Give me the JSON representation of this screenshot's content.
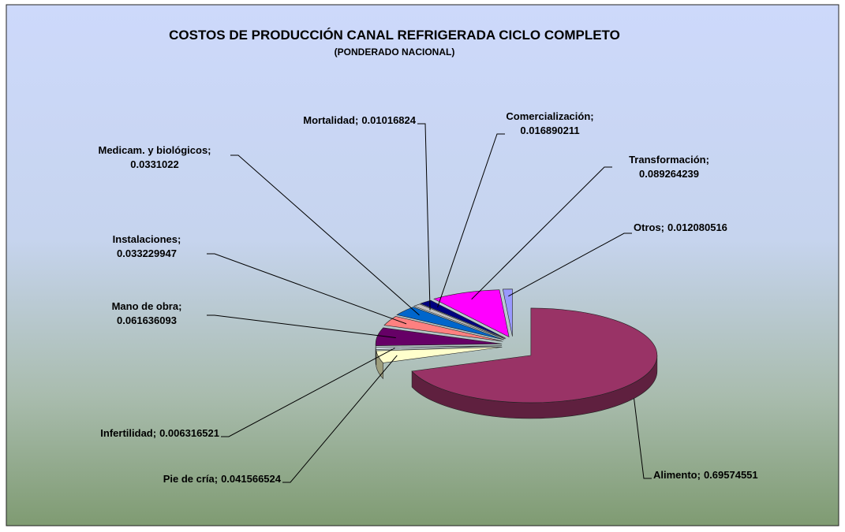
{
  "chart_data": {
    "type": "pie",
    "title": "COSTOS DE PRODUCCIÓN CANAL REFRIGERADA CICLO COMPLETO",
    "subtitle": "(PONDERADO  NACIONAL)",
    "categories": [
      "Alimento;",
      "Pie de cría;",
      "Infertilidad;",
      "Mano de obra;",
      "Instalaciones;",
      "Medicam. y biológicos;",
      "Mortalidad;",
      "Comercialización;",
      "Transformación;",
      "Otros;"
    ],
    "values": [
      0.69574551,
      0.041566524,
      0.006316521,
      0.061636093,
      0.033229947,
      0.0331022,
      0.01016824,
      0.016890211,
      0.089264239,
      0.012080516
    ],
    "colors": [
      "#993366",
      "#ffffcc",
      "#e8f4ff",
      "#660066",
      "#ff8080",
      "#0066cc",
      "#c0c0c0",
      "#000080",
      "#ff00ff",
      "#9999ff"
    ]
  }
}
